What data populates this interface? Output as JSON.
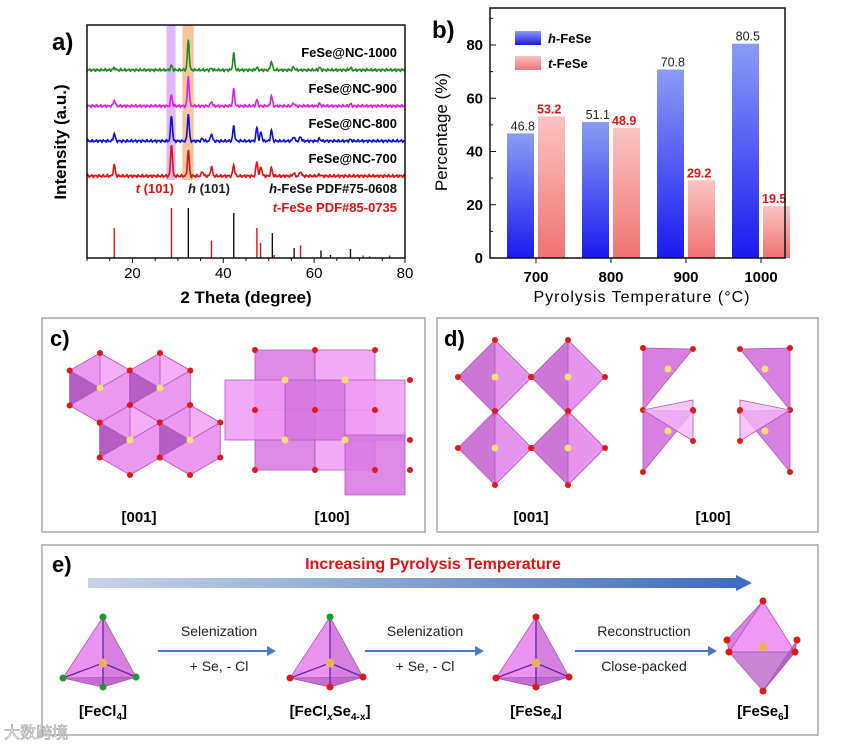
{
  "panel_labels": {
    "a": "a)",
    "b": "b)",
    "c": "c)",
    "d": "d)",
    "e": "e)"
  },
  "chart_data": [
    {
      "type": "line",
      "title": "",
      "xlabel": "2 Theta (degree)",
      "ylabel": "Intensity (a.u.)",
      "xlim": [
        10,
        80
      ],
      "xticks": [
        "20",
        "40",
        "60",
        "80"
      ],
      "highlight_bands": [
        {
          "range": [
            27.5,
            29.5
          ],
          "color": "#d9a6f5"
        },
        {
          "range": [
            31.0,
            33.5
          ],
          "color": "#f2b98a"
        }
      ],
      "series": [
        {
          "name": "FeSe@NC-1000",
          "color": "#1f8a1f",
          "peaks": [
            [
              16.0,
              0.08
            ],
            [
              28.6,
              0.15
            ],
            [
              32.3,
              1.0
            ],
            [
              37.4,
              0.05
            ],
            [
              42.3,
              0.55
            ],
            [
              47.4,
              0.08
            ],
            [
              50.6,
              0.3
            ],
            [
              55.5,
              0.1
            ],
            [
              61.2,
              0.08
            ],
            [
              68.0,
              0.07
            ]
          ]
        },
        {
          "name": "FeSe@NC-900",
          "color": "#e020e0",
          "peaks": [
            [
              16.0,
              0.2
            ],
            [
              28.6,
              0.35
            ],
            [
              32.3,
              1.0
            ],
            [
              37.4,
              0.15
            ],
            [
              42.3,
              0.55
            ],
            [
              47.4,
              0.2
            ],
            [
              50.6,
              0.35
            ],
            [
              55.5,
              0.1
            ],
            [
              61.2,
              0.08
            ],
            [
              68.0,
              0.07
            ]
          ]
        },
        {
          "name": "FeSe@NC-800",
          "color": "#1010e0",
          "peaks": [
            [
              16.0,
              0.25
            ],
            [
              28.6,
              0.85
            ],
            [
              32.3,
              0.9
            ],
            [
              35.4,
              0.08
            ],
            [
              37.4,
              0.25
            ],
            [
              42.3,
              0.5
            ],
            [
              47.4,
              0.45
            ],
            [
              48.3,
              0.3
            ],
            [
              50.6,
              0.35
            ],
            [
              55.5,
              0.15
            ],
            [
              57.0,
              0.15
            ],
            [
              61.2,
              0.08
            ],
            [
              68.0,
              0.05
            ]
          ]
        },
        {
          "name": "FeSe@NC-700",
          "color": "#e81010",
          "peaks": [
            [
              16.0,
              0.35
            ],
            [
              28.6,
              1.0
            ],
            [
              32.3,
              0.8
            ],
            [
              35.4,
              0.15
            ],
            [
              37.4,
              0.3
            ],
            [
              42.3,
              0.35
            ],
            [
              47.4,
              0.45
            ],
            [
              48.3,
              0.3
            ],
            [
              50.6,
              0.25
            ],
            [
              55.5,
              0.1
            ],
            [
              57.0,
              0.15
            ],
            [
              61.2,
              0.05
            ]
          ]
        }
      ],
      "annotations": [
        {
          "text_italic": "t",
          "text": " (101)",
          "color": "#e81010"
        },
        {
          "text_italic": "h",
          "text": " (101)",
          "color": "#222222"
        }
      ],
      "references": [
        {
          "name_italic": "h",
          "name": "-FeSe PDF#75-0608",
          "color": "#111111",
          "lines": [
            [
              32.3,
              1.0
            ],
            [
              42.3,
              0.9
            ],
            [
              50.8,
              0.5
            ],
            [
              55.6,
              0.2
            ],
            [
              61.5,
              0.15
            ],
            [
              63.6,
              0.06
            ],
            [
              68.0,
              0.18
            ],
            [
              72.2,
              0.03
            ]
          ]
        },
        {
          "name_italic": "t",
          "name": "-FeSe PDF#85-0735",
          "color": "#e81010",
          "lines": [
            [
              16.0,
              0.6
            ],
            [
              28.6,
              1.0
            ],
            [
              37.4,
              0.35
            ],
            [
              47.4,
              0.6
            ],
            [
              48.2,
              0.3
            ],
            [
              51.2,
              0.06
            ],
            [
              57.0,
              0.25
            ],
            [
              70.8,
              0.05
            ],
            [
              76.6,
              0.05
            ]
          ]
        }
      ]
    },
    {
      "type": "bar",
      "xlabel": "Pyrolysis Temperature (°C)",
      "ylabel": "Percentage (%)",
      "ylim": [
        0,
        90
      ],
      "yticks": [
        "0",
        "20",
        "40",
        "60",
        "80"
      ],
      "categories": [
        "700",
        "800",
        "900",
        "1000"
      ],
      "legend_placement": "top-left",
      "series": [
        {
          "name_italic": "h",
          "name": "-FeSe",
          "color": "#3344ee",
          "values": [
            46.8,
            51.1,
            70.8,
            80.5
          ],
          "labels": [
            "46.8",
            "51.1",
            "70.8",
            "80.5"
          ],
          "label_color": "#222222"
        },
        {
          "name_italic": "t",
          "name": "-FeSe",
          "color": "#f08080",
          "values": [
            53.2,
            48.9,
            29.2,
            19.5
          ],
          "labels": [
            "53.2",
            "48.9",
            "29.2",
            "19.5"
          ],
          "label_color": "#e81010"
        }
      ]
    }
  ],
  "panel_c": {
    "labels": [
      "[001]",
      "[100]"
    ]
  },
  "panel_d": {
    "labels": [
      "[001]",
      "[100]"
    ]
  },
  "panel_e": {
    "title": "Increasing Pyrolysis Temperature",
    "steps": [
      {
        "top": "Selenization",
        "bottom": "+ Se, - Cl"
      },
      {
        "top": "Selenization",
        "bottom": "+ Se, - Cl"
      },
      {
        "top": "Reconstruction",
        "bottom": "Close-packed"
      }
    ],
    "species": [
      {
        "parts": [
          "[FeCl",
          "4",
          "]"
        ]
      },
      {
        "parts": [
          "[FeCl",
          "x",
          "Se",
          "4-x",
          "]"
        ]
      },
      {
        "parts": [
          "[FeSe",
          "4",
          "]"
        ]
      },
      {
        "parts": [
          "[FeSe",
          "6",
          "]"
        ]
      }
    ]
  },
  "watermark": "大数跨境"
}
